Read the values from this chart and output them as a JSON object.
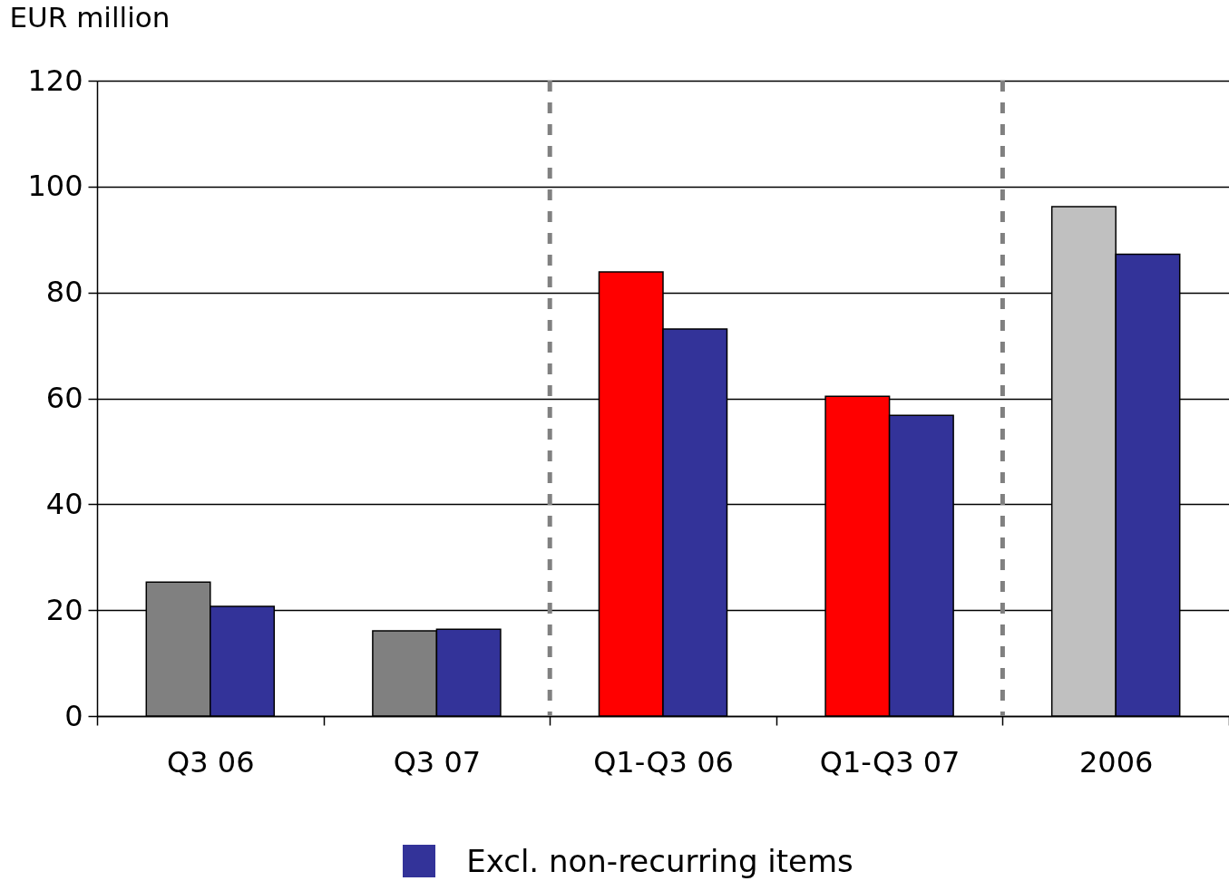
{
  "chart_data": {
    "type": "bar",
    "ylabel": "EUR million",
    "categories": [
      "Q3 06",
      "Q3 07",
      "Q1-Q3 06",
      "Q1-Q3 07",
      "2006"
    ],
    "series": [
      {
        "colors": [
          "#808080",
          "#808080",
          "#ff0000",
          "#ff0000",
          "#c0c0c0"
        ],
        "values": [
          25.3,
          16.1,
          83.9,
          60.4,
          96.2
        ]
      },
      {
        "name": "Excl. non-recurring items",
        "color": "#333399",
        "values": [
          20.7,
          16.4,
          73.1,
          56.8,
          87.2
        ]
      }
    ],
    "ylim": [
      0,
      120
    ],
    "yticks": [
      0,
      20,
      40,
      60,
      80,
      100,
      120
    ],
    "grid": "y",
    "legend": "bottom"
  }
}
